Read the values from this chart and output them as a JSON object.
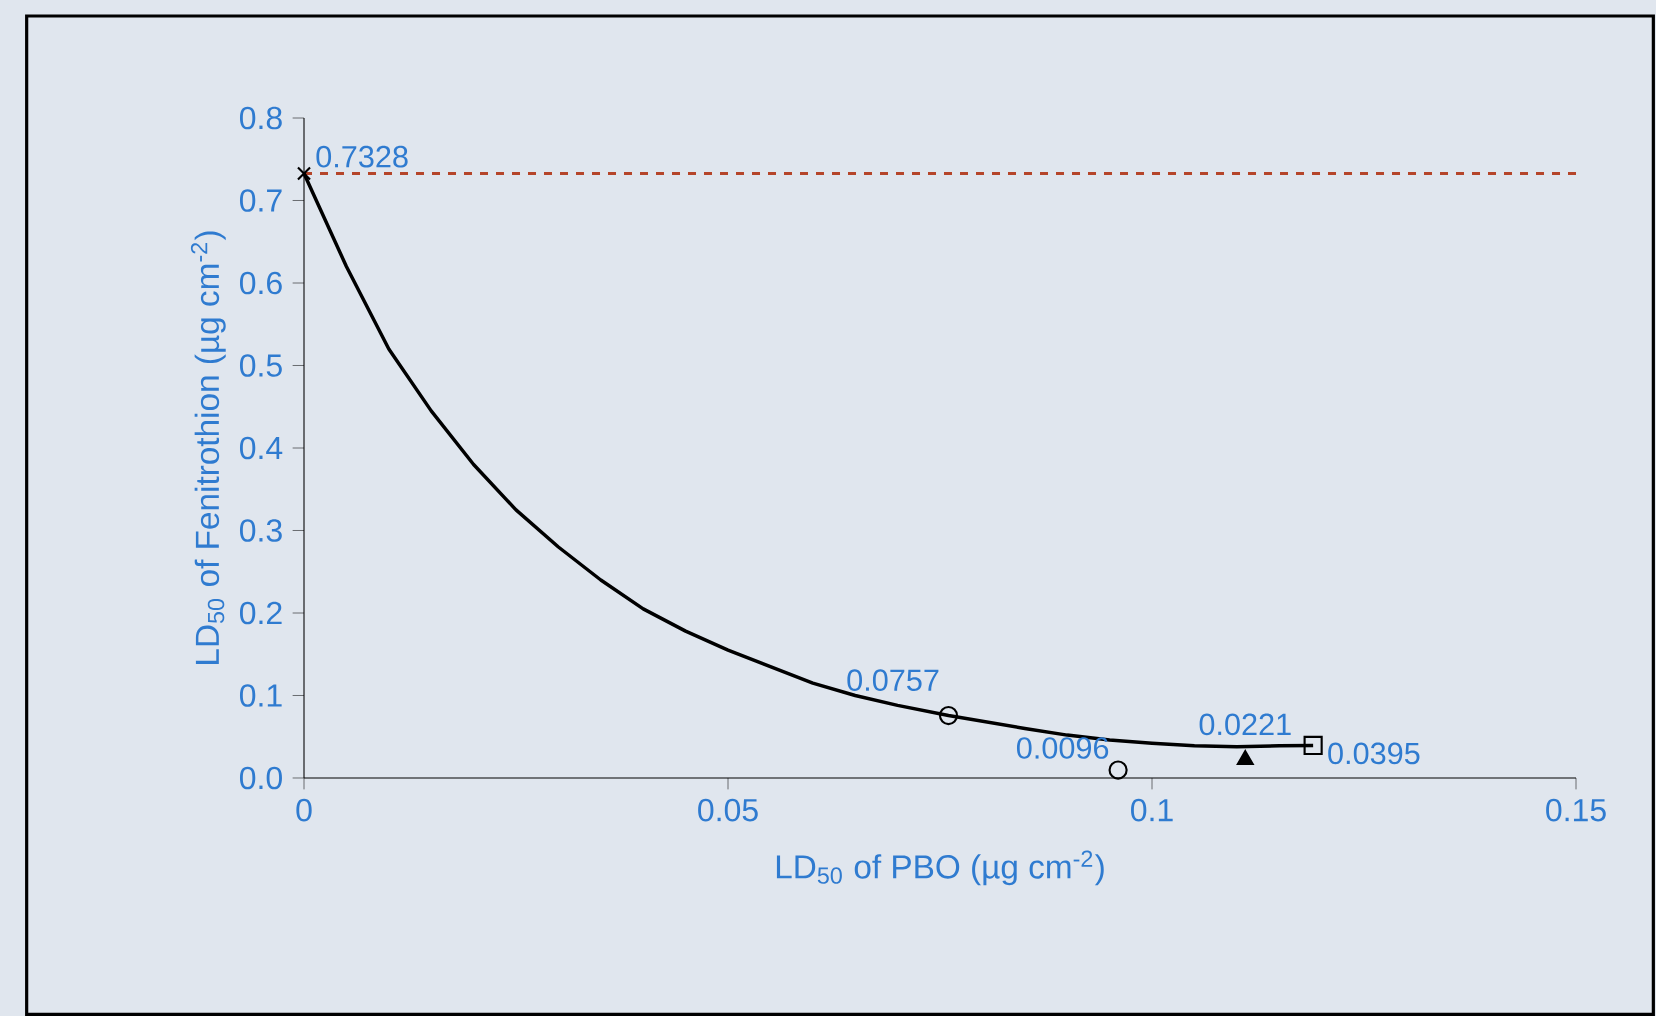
{
  "chart_data": {
    "type": "scatter",
    "xlabel": "LD$_{50}$ of PBO (µg cm$^{-2}$)",
    "ylabel": "LD$_{50}$ of Fenitrothion (µg cm$^{-2}$)",
    "xlim": [
      0,
      0.15
    ],
    "ylim": [
      0,
      0.8
    ],
    "xticks": [
      0,
      0.05,
      0.1,
      0.15
    ],
    "yticks": [
      {
        "value": 0,
        "label": "0.0"
      },
      {
        "value": 0.1,
        "label": "0.1"
      },
      {
        "value": 0.2,
        "label": "0.2"
      },
      {
        "value": 0.3,
        "label": "0.3"
      },
      {
        "value": 0.4,
        "label": "0.4"
      },
      {
        "value": 0.5,
        "label": "0.5"
      },
      {
        "value": 0.6,
        "label": "0.6"
      },
      {
        "value": 0.7,
        "label": "0.7"
      },
      {
        "value": 0.8,
        "label": "0.8"
      }
    ],
    "grid": false,
    "series": [
      {
        "type": "line",
        "color": "#000000",
        "marker": "none",
        "line_style": "solid",
        "x": [
          0,
          0.005,
          0.01,
          0.015,
          0.02,
          0.025,
          0.03,
          0.035,
          0.04,
          0.045,
          0.05,
          0.055,
          0.06,
          0.065,
          0.07,
          0.076,
          0.085,
          0.09,
          0.095,
          0.1,
          0.105,
          0.11,
          0.115,
          0.119
        ],
        "values": [
          0.7328,
          0.62,
          0.52,
          0.445,
          0.38,
          0.325,
          0.28,
          0.24,
          0.205,
          0.178,
          0.155,
          0.135,
          0.115,
          0.1,
          0.088,
          0.0757,
          0.06,
          0.052,
          0.046,
          0.042,
          0.039,
          0.038,
          0.039,
          0.0395
        ]
      },
      {
        "color": "#000000",
        "marker": "cross",
        "x": [
          0
        ],
        "values": [
          0.7328
        ],
        "value_labels": [
          "0.7328"
        ]
      },
      {
        "color": "#000000",
        "marker": "circle",
        "x": [
          0.076
        ],
        "values": [
          0.0757
        ],
        "value_labels": [
          "0.0757"
        ]
      },
      {
        "color": "#000000",
        "marker": "circle",
        "x": [
          0.096
        ],
        "values": [
          0.0096
        ],
        "value_labels": [
          "0.0096"
        ]
      },
      {
        "color": "#000000",
        "marker": "triangle",
        "x": [
          0.111
        ],
        "values": [
          0.0221
        ],
        "value_labels": [
          "0.0221"
        ]
      },
      {
        "color": "#000000",
        "marker": "square",
        "x": [
          0.119
        ],
        "values": [
          0.0395
        ],
        "value_labels": [
          "0.0395"
        ]
      }
    ],
    "ref_lines": [
      {
        "axis": "y",
        "value": 0.7328,
        "color": "#b5452a",
        "line_style": "dashed"
      }
    ]
  }
}
